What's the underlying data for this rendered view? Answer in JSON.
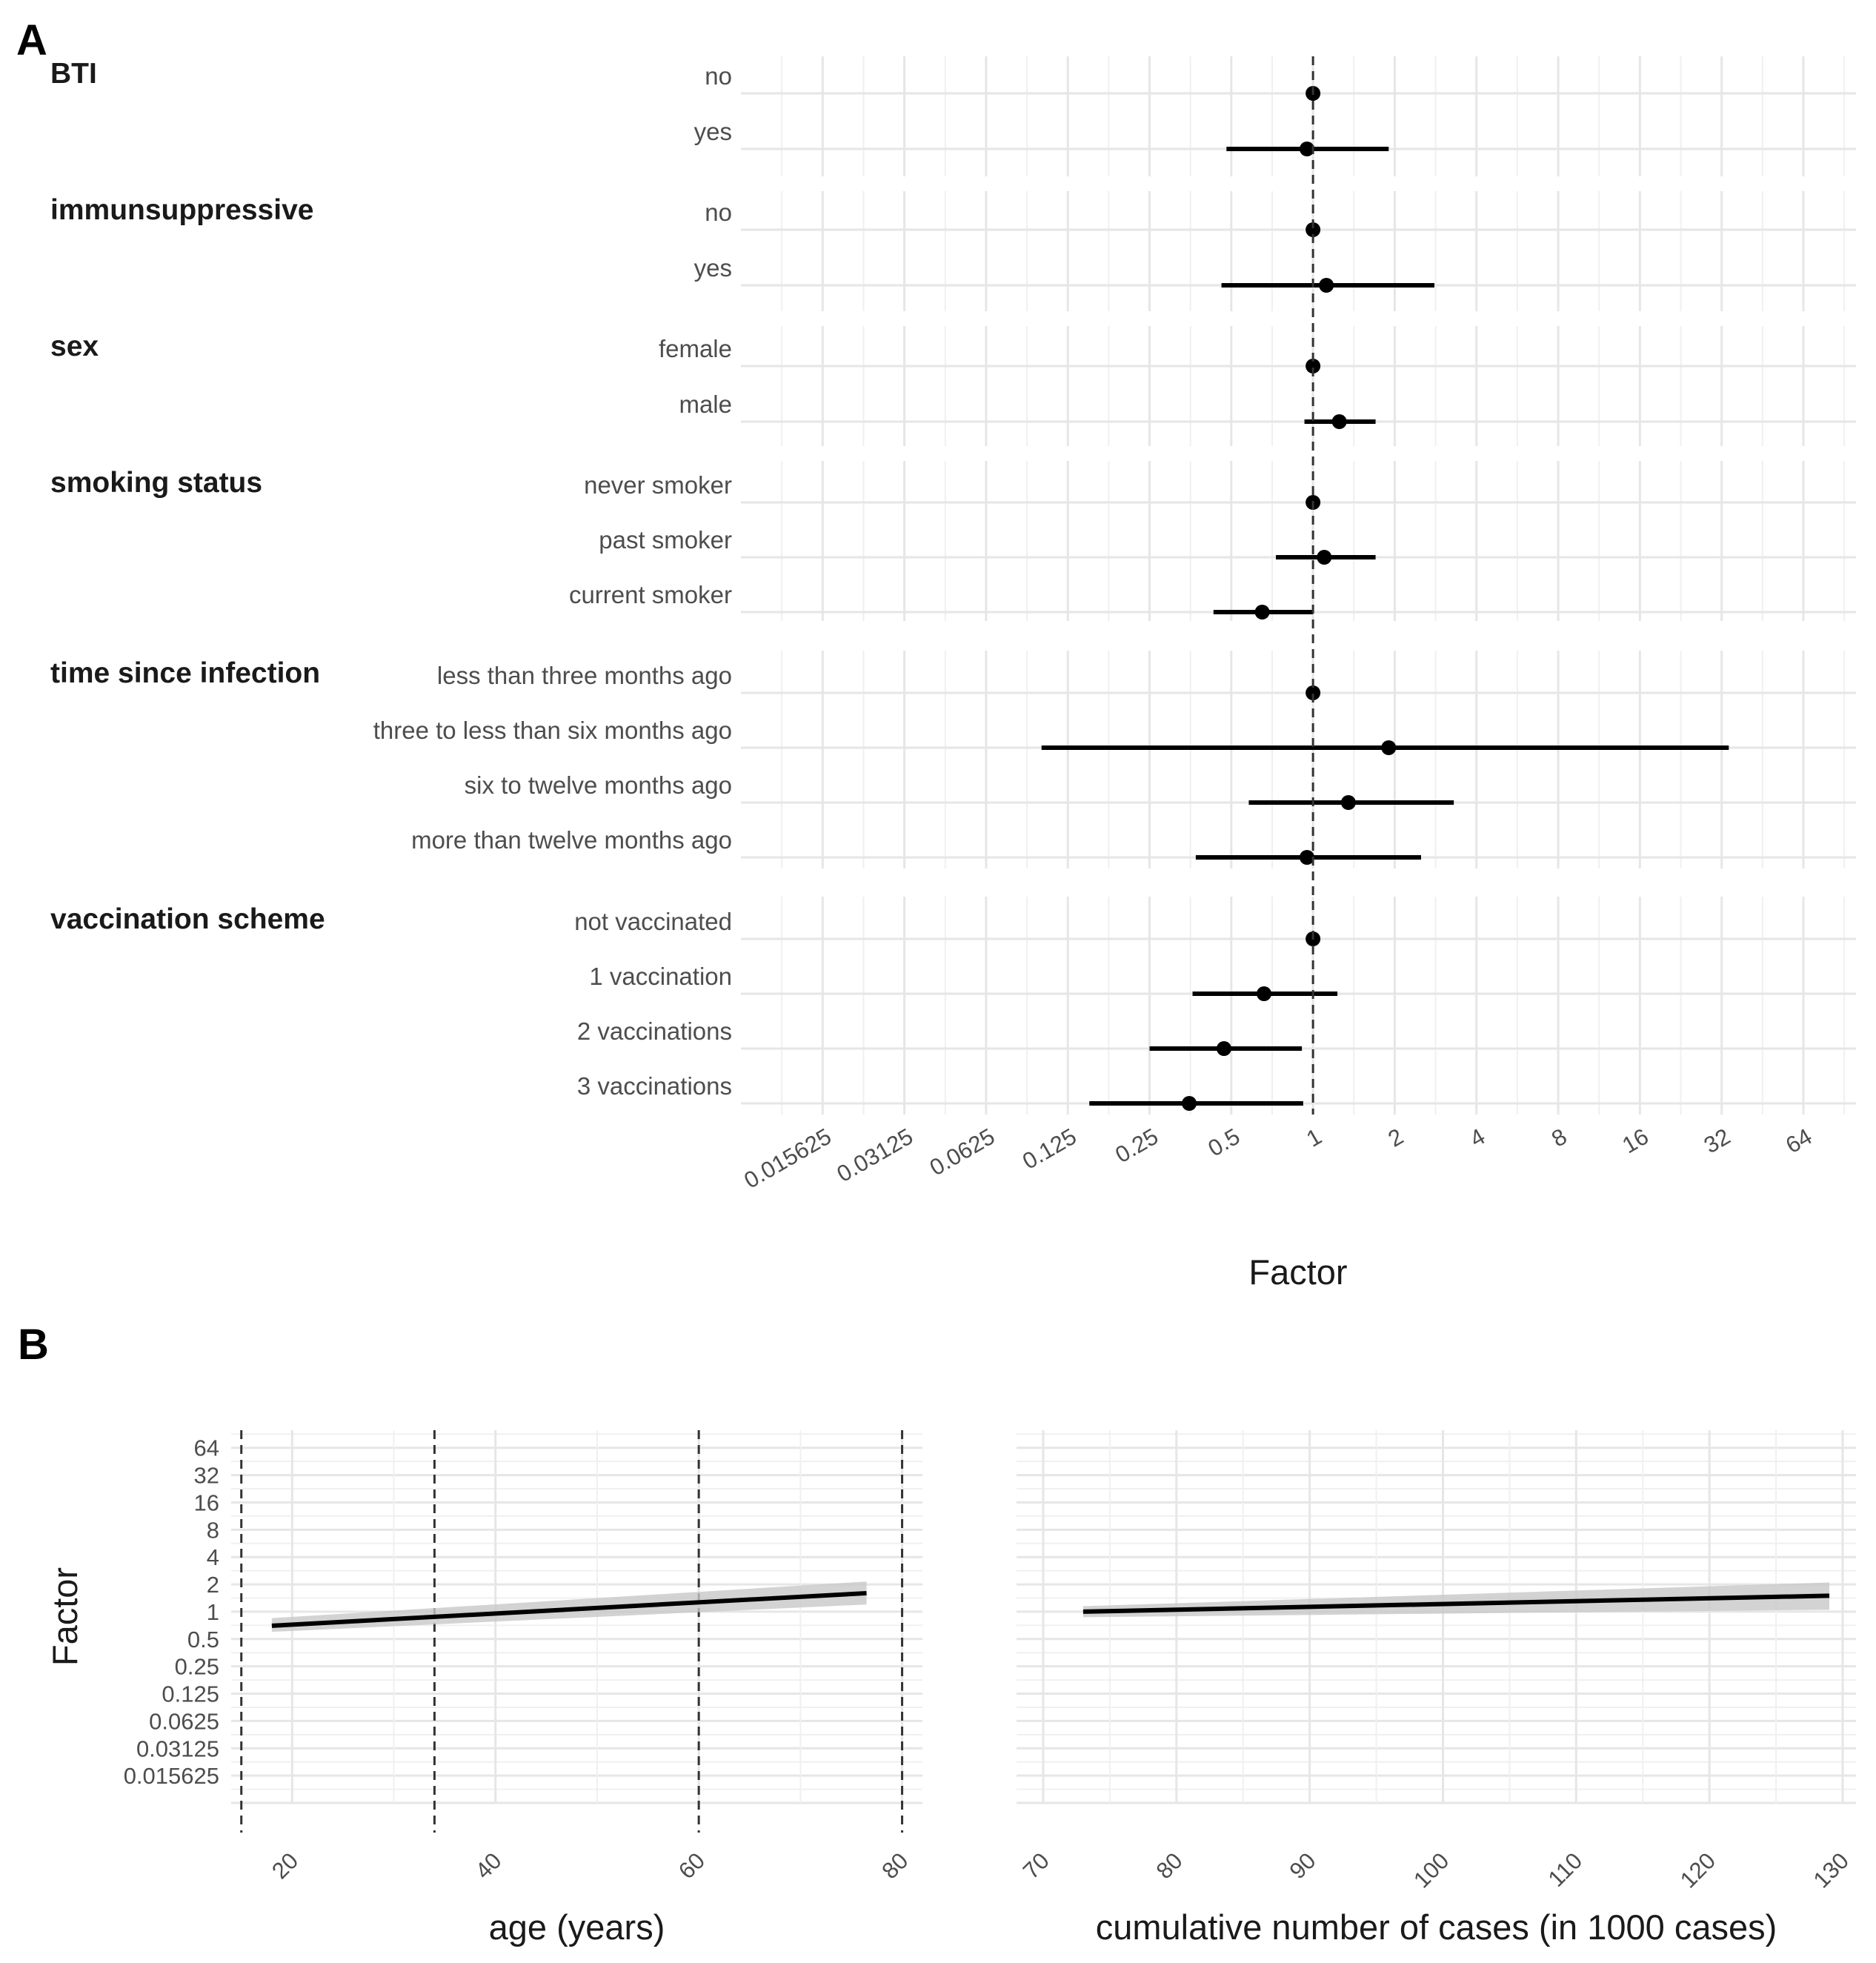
{
  "panel_labels": [
    "A",
    "B"
  ],
  "chart_data": [
    {
      "type": "scatter",
      "subtype": "forest-plot",
      "panel": "A",
      "xlabel": "Factor",
      "x_scale": "log2",
      "xlim": [
        0.0078125,
        100
      ],
      "x_ticks": [
        "0.015625",
        "0.03125",
        "0.0625",
        "0.125",
        "0.25",
        "0.5",
        "1",
        "2",
        "4",
        "8",
        "16",
        "32",
        "64"
      ],
      "reference_line": 1,
      "grid": true,
      "groups": [
        {
          "name": "BTI",
          "levels": [
            {
              "label": "no",
              "estimate": 1,
              "ci": [
                1,
                1
              ]
            },
            {
              "label": "yes",
              "estimate": 0.95,
              "ci": [
                0.48,
                1.9
              ]
            }
          ]
        },
        {
          "name": "immunsuppressive",
          "levels": [
            {
              "label": "no",
              "estimate": 1,
              "ci": [
                1,
                1
              ]
            },
            {
              "label": "yes",
              "estimate": 1.12,
              "ci": [
                0.46,
                2.8
              ]
            }
          ]
        },
        {
          "name": "sex",
          "levels": [
            {
              "label": "female",
              "estimate": 1,
              "ci": [
                1,
                1
              ]
            },
            {
              "label": "male",
              "estimate": 1.25,
              "ci": [
                0.93,
                1.7
              ]
            }
          ]
        },
        {
          "name": "smoking status",
          "levels": [
            {
              "label": "never smoker",
              "estimate": 1,
              "ci": [
                1,
                1
              ]
            },
            {
              "label": "past smoker",
              "estimate": 1.1,
              "ci": [
                0.73,
                1.7
              ]
            },
            {
              "label": "current smoker",
              "estimate": 0.65,
              "ci": [
                0.43,
                1.0
              ]
            }
          ]
        },
        {
          "name": "time since infection",
          "levels": [
            {
              "label": "less than three months ago",
              "estimate": 1,
              "ci": [
                1,
                1
              ]
            },
            {
              "label": "three to less than six months ago",
              "estimate": 1.9,
              "ci": [
                0.1,
                34
              ]
            },
            {
              "label": "six to twelve months ago",
              "estimate": 1.35,
              "ci": [
                0.58,
                3.3
              ]
            },
            {
              "label": "more than twelve months ago",
              "estimate": 0.95,
              "ci": [
                0.37,
                2.5
              ]
            }
          ]
        },
        {
          "name": "vaccination scheme",
          "levels": [
            {
              "label": "not vaccinated",
              "estimate": 1,
              "ci": [
                1,
                1
              ]
            },
            {
              "label": "1 vaccination",
              "estimate": 0.66,
              "ci": [
                0.36,
                1.23
              ]
            },
            {
              "label": "2 vaccinations",
              "estimate": 0.47,
              "ci": [
                0.25,
                0.91
              ]
            },
            {
              "label": "3 vaccinations",
              "estimate": 0.35,
              "ci": [
                0.15,
                0.92
              ]
            }
          ]
        }
      ]
    },
    {
      "type": "line",
      "panel": "B",
      "xlabel": "age (years)",
      "ylabel": "Factor",
      "xlim": [
        14,
        82
      ],
      "y_scale": "log2",
      "ylim": [
        0.0078125,
        100
      ],
      "x_ticks": [
        20,
        40,
        60,
        80
      ],
      "y_ticks": [
        "64",
        "32",
        "16",
        "8",
        "4",
        "2",
        "1",
        "0.5",
        "0.25",
        "0.125",
        "0.0625",
        "0.03125",
        "0.015625"
      ],
      "knots": [
        15,
        34,
        60,
        80
      ],
      "grid": true,
      "series": [
        {
          "x": [
            18,
            76.5
          ],
          "y": [
            0.7,
            1.6
          ],
          "ci_lower": [
            0.6,
            1.2
          ],
          "ci_upper": [
            0.85,
            2.15
          ]
        }
      ]
    },
    {
      "type": "line",
      "panel": "B",
      "xlabel": "cumulative number of cases (in 1000 cases)",
      "xlim": [
        68,
        131
      ],
      "y_scale": "log2",
      "ylim": [
        0.0078125,
        100
      ],
      "x_ticks": [
        70,
        80,
        90,
        100,
        110,
        120,
        130
      ],
      "grid": true,
      "series": [
        {
          "x": [
            73,
            129
          ],
          "y": [
            1.0,
            1.5
          ],
          "ci_lower": [
            0.87,
            1.05
          ],
          "ci_upper": [
            1.15,
            2.1
          ]
        }
      ]
    }
  ]
}
